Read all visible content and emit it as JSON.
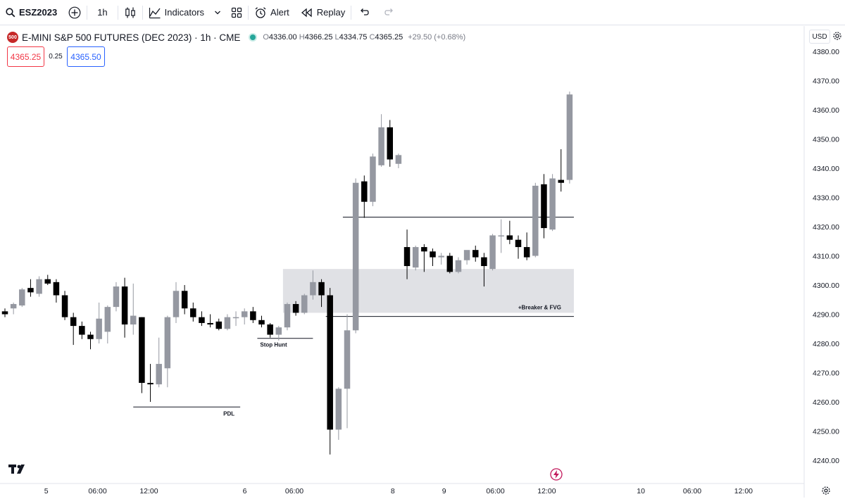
{
  "toolbar": {
    "symbol": "ESZ2023",
    "interval": "1h",
    "indicators_label": "Indicators",
    "alert_label": "Alert",
    "replay_label": "Replay"
  },
  "legend": {
    "logo_text": "500",
    "title": "E-MINI S&P 500 FUTURES (DEC 2023) · 1h · CME",
    "open_label": "O",
    "open": "4336.00",
    "high_label": "H",
    "high": "4366.25",
    "low_label": "L",
    "low": "4334.75",
    "close_label": "C",
    "close": "4365.25",
    "change": "+29.50 (+0.68%)"
  },
  "trade": {
    "sell_price": "4365.25",
    "spread": "0.25",
    "buy_price": "4365.50"
  },
  "currency": "USD",
  "colors": {
    "bull": "#9598a1",
    "bear": "#000000",
    "zone": "#e0e1e5",
    "buy": "#2962ff",
    "sell": "#f23645"
  },
  "chart_data": {
    "type": "candlestick",
    "y_axis": {
      "min": 4236,
      "max": 4383,
      "ticks": [
        4380,
        4370,
        4360,
        4350,
        4340,
        4330,
        4320,
        4310,
        4300,
        4290,
        4280,
        4270,
        4260,
        4250,
        4240
      ],
      "tick_labels": [
        "4380.00",
        "4370.00",
        "4360.00",
        "4350.00",
        "4340.00",
        "4330.00",
        "4320.00",
        "4310.00",
        "4300.00",
        "4290.00",
        "4280.00",
        "4270.00",
        "4260.00",
        "4250.00",
        "4240.00"
      ]
    },
    "x_ticks": [
      {
        "bar": 4.5,
        "label": "5"
      },
      {
        "bar": 10.5,
        "label": "06:00"
      },
      {
        "bar": 16.5,
        "label": "12:00"
      },
      {
        "bar": 27.7,
        "label": "6"
      },
      {
        "bar": 33.5,
        "label": "06:00"
      },
      {
        "bar": 45.0,
        "label": "8"
      },
      {
        "bar": 51.0,
        "label": "9"
      },
      {
        "bar": 57.0,
        "label": "06:00"
      },
      {
        "bar": 63.0,
        "label": "12:00"
      },
      {
        "bar": 74.0,
        "label": "10"
      },
      {
        "bar": 80.0,
        "label": "06:00"
      },
      {
        "bar": 86.0,
        "label": "12:00"
      }
    ],
    "candles": [
      {
        "o": 4291.0,
        "h": 4292.0,
        "l": 4289.0,
        "c": 4290.0
      },
      {
        "o": 4292.0,
        "h": 4294.0,
        "l": 4290.0,
        "c": 4293.5
      },
      {
        "o": 4293.0,
        "h": 4299.0,
        "l": 4292.5,
        "c": 4298.5
      },
      {
        "o": 4299.0,
        "h": 4302.0,
        "l": 4296.0,
        "c": 4297.5
      },
      {
        "o": 4297.0,
        "h": 4303.0,
        "l": 4296.0,
        "c": 4302.0
      },
      {
        "o": 4302.0,
        "h": 4303.5,
        "l": 4300.0,
        "c": 4300.5
      },
      {
        "o": 4301.0,
        "h": 4302.0,
        "l": 4294.0,
        "c": 4296.5
      },
      {
        "o": 4296.5,
        "h": 4298.0,
        "l": 4288.0,
        "c": 4289.0
      },
      {
        "o": 4289.0,
        "h": 4290.5,
        "l": 4279.5,
        "c": 4286.0
      },
      {
        "o": 4286.0,
        "h": 4287.5,
        "l": 4281.5,
        "c": 4283.0
      },
      {
        "o": 4283.0,
        "h": 4284.0,
        "l": 4278.0,
        "c": 4281.5
      },
      {
        "o": 4281.5,
        "h": 4294.0,
        "l": 4280.0,
        "c": 4288.5
      },
      {
        "o": 4284.0,
        "h": 4293.0,
        "l": 4280.0,
        "c": 4292.5
      },
      {
        "o": 4292.5,
        "h": 4301.0,
        "l": 4291.0,
        "c": 4299.5
      },
      {
        "o": 4299.5,
        "h": 4302.5,
        "l": 4282.0,
        "c": 4286.5
      },
      {
        "o": 4286.5,
        "h": 4300.5,
        "l": 4283.0,
        "c": 4289.5
      },
      {
        "o": 4289.0,
        "h": 4289.0,
        "l": 4263.0,
        "c": 4266.5
      },
      {
        "o": 4266.5,
        "h": 4273.0,
        "l": 4260.0,
        "c": 4266.0
      },
      {
        "o": 4266.0,
        "h": 4282.0,
        "l": 4265.0,
        "c": 4273.0
      },
      {
        "o": 4271.5,
        "h": 4289.5,
        "l": 4265.0,
        "c": 4289.0
      },
      {
        "o": 4289.0,
        "h": 4301.0,
        "l": 4287.0,
        "c": 4298.0
      },
      {
        "o": 4298.0,
        "h": 4300.0,
        "l": 4290.0,
        "c": 4292.0
      },
      {
        "o": 4292.0,
        "h": 4294.0,
        "l": 4287.5,
        "c": 4289.0
      },
      {
        "o": 4289.0,
        "h": 4291.0,
        "l": 4286.0,
        "c": 4287.0
      },
      {
        "o": 4287.0,
        "h": 4290.0,
        "l": 4285.5,
        "c": 4286.5
      },
      {
        "o": 4287.5,
        "h": 4288.5,
        "l": 4284.5,
        "c": 4285.0
      },
      {
        "o": 4285.0,
        "h": 4290.0,
        "l": 4284.5,
        "c": 4289.0
      },
      {
        "o": 4289.0,
        "h": 4291.0,
        "l": 4286.0,
        "c": 4289.0
      },
      {
        "o": 4289.0,
        "h": 4292.0,
        "l": 4286.5,
        "c": 4291.0
      },
      {
        "o": 4291.0,
        "h": 4292.5,
        "l": 4287.0,
        "c": 4288.0
      },
      {
        "o": 4288.0,
        "h": 4289.5,
        "l": 4285.5,
        "c": 4286.5
      },
      {
        "o": 4286.5,
        "h": 4287.0,
        "l": 4282.0,
        "c": 4283.0
      },
      {
        "o": 4283.0,
        "h": 4286.0,
        "l": 4281.0,
        "c": 4285.5
      },
      {
        "o": 4285.5,
        "h": 4294.0,
        "l": 4284.5,
        "c": 4293.5
      },
      {
        "o": 4293.5,
        "h": 4294.5,
        "l": 4289.5,
        "c": 4290.5
      },
      {
        "o": 4290.5,
        "h": 4297.0,
        "l": 4290.0,
        "c": 4296.5
      },
      {
        "o": 4296.5,
        "h": 4305.0,
        "l": 4295.0,
        "c": 4301.0
      },
      {
        "o": 4301.0,
        "h": 4302.0,
        "l": 4292.5,
        "c": 4296.5
      },
      {
        "o": 4296.5,
        "h": 4299.0,
        "l": 4242.0,
        "c": 4250.5
      },
      {
        "o": 4250.5,
        "h": 4265.0,
        "l": 4247.0,
        "c": 4264.5
      },
      {
        "o": 4264.5,
        "h": 4290.0,
        "l": 4251.0,
        "c": 4284.5
      },
      {
        "o": 4284.5,
        "h": 4336.5,
        "l": 4283.5,
        "c": 4335.0
      },
      {
        "o": 4335.5,
        "h": 4337.5,
        "l": 4323.0,
        "c": 4328.5
      },
      {
        "o": 4328.5,
        "h": 4345.0,
        "l": 4327.0,
        "c": 4344.0
      },
      {
        "o": 4341.0,
        "h": 4358.5,
        "l": 4340.5,
        "c": 4354.0
      },
      {
        "o": 4354.0,
        "h": 4356.5,
        "l": 4340.5,
        "c": 4343.0
      },
      {
        "o": 4341.5,
        "h": 4345.0,
        "l": 4340.0,
        "c": 4344.5
      },
      {
        "o": 4313.0,
        "h": 4319.0,
        "l": 4302.0,
        "c": 4306.5
      },
      {
        "o": 4306.0,
        "h": 4313.5,
        "l": 4305.0,
        "c": 4313.0
      },
      {
        "o": 4313.0,
        "h": 4314.0,
        "l": 4304.5,
        "c": 4311.5
      },
      {
        "o": 4311.5,
        "h": 4312.5,
        "l": 4306.5,
        "c": 4309.5
      },
      {
        "o": 4309.5,
        "h": 4311.0,
        "l": 4307.0,
        "c": 4310.0
      },
      {
        "o": 4310.0,
        "h": 4311.0,
        "l": 4304.0,
        "c": 4304.5
      },
      {
        "o": 4304.5,
        "h": 4309.5,
        "l": 4304.0,
        "c": 4308.5
      },
      {
        "o": 4308.5,
        "h": 4311.0,
        "l": 4307.0,
        "c": 4312.0
      },
      {
        "o": 4312.0,
        "h": 4313.5,
        "l": 4308.0,
        "c": 4309.5
      },
      {
        "o": 4309.5,
        "h": 4311.0,
        "l": 4299.5,
        "c": 4306.5
      },
      {
        "o": 4305.5,
        "h": 4317.5,
        "l": 4305.0,
        "c": 4317.0
      },
      {
        "o": 4317.0,
        "h": 4322.5,
        "l": 4311.0,
        "c": 4317.0
      },
      {
        "o": 4317.0,
        "h": 4322.0,
        "l": 4314.0,
        "c": 4315.5
      },
      {
        "o": 4315.5,
        "h": 4317.0,
        "l": 4309.0,
        "c": 4313.0
      },
      {
        "o": 4313.0,
        "h": 4318.0,
        "l": 4308.5,
        "c": 4309.5
      },
      {
        "o": 4310.0,
        "h": 4335.0,
        "l": 4309.5,
        "c": 4334.0
      },
      {
        "o": 4334.5,
        "h": 4338.0,
        "l": 4316.0,
        "c": 4319.5
      },
      {
        "o": 4319.0,
        "h": 4338.0,
        "l": 4318.5,
        "c": 4336.5
      },
      {
        "o": 4336.0,
        "h": 4346.5,
        "l": 4332.0,
        "c": 4335.0
      },
      {
        "o": 4336.0,
        "h": 4366.25,
        "l": 4334.75,
        "c": 4365.25
      }
    ],
    "annotations": [
      {
        "type": "hline",
        "price": 4258.25,
        "from_bar": 15.0,
        "to_bar": 27.5,
        "label": "PDL"
      },
      {
        "type": "hline",
        "price": 4281.75,
        "from_bar": 29.5,
        "to_bar": 36.0,
        "label": "Stop Hunt"
      },
      {
        "type": "zone",
        "top": 4305.5,
        "bottom": 4290.5,
        "from_bar": 32.5,
        "to_bar": 66.5,
        "label": "+Breaker & FVG"
      },
      {
        "type": "hline",
        "price": 4289.25,
        "from_bar": 37.5,
        "to_bar": 66.5,
        "label": ""
      },
      {
        "type": "hline",
        "price": 4323.25,
        "from_bar": 39.5,
        "to_bar": 66.5,
        "label": ""
      }
    ]
  }
}
